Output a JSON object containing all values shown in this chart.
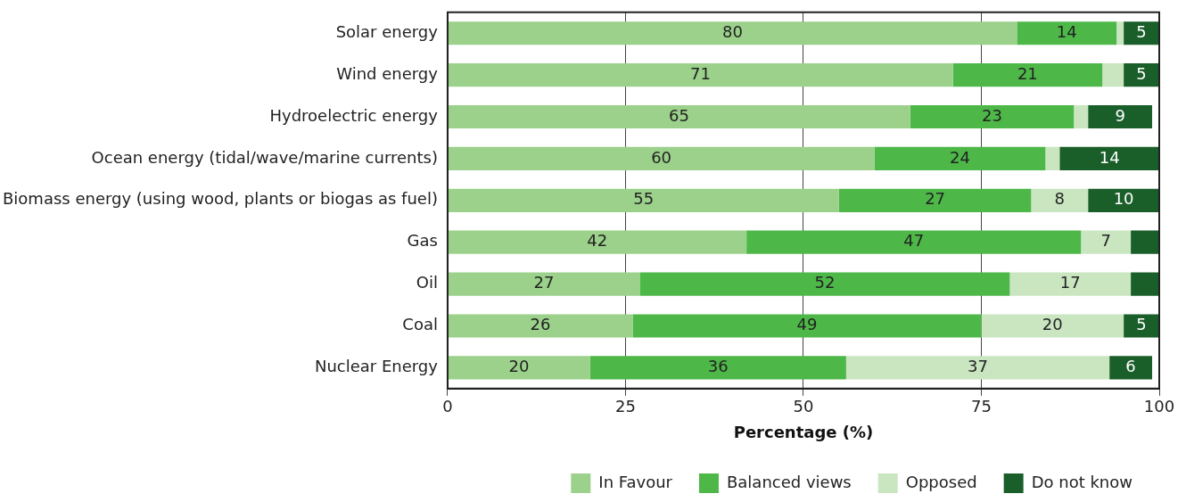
{
  "chart_data": {
    "type": "bar",
    "orientation": "horizontal",
    "stacked": true,
    "xlabel": "Percentage (%)",
    "categories": [
      "Solar energy",
      "Wind energy",
      "Hydroelectric energy",
      "Ocean energy (tidal/wave/marine currents)",
      "Biomass energy (using wood, plants or biogas as fuel)",
      "Gas",
      "Oil",
      "Coal",
      "Nuclear Energy"
    ],
    "series": [
      {
        "name": "In Favour",
        "color": "#9bd18a",
        "values": [
          80,
          71,
          65,
          60,
          55,
          42,
          27,
          26,
          20
        ],
        "value_labels": [
          "80",
          "71",
          "65",
          "60",
          "55",
          "42",
          "27",
          "26",
          "20"
        ]
      },
      {
        "name": "Balanced views",
        "color": "#4db848",
        "values": [
          14,
          21,
          23,
          24,
          27,
          47,
          52,
          49,
          36
        ],
        "value_labels": [
          "14",
          "21",
          "23",
          "24",
          "27",
          "47",
          "52",
          "49",
          "36"
        ]
      },
      {
        "name": "Opposed",
        "color": "#c9e6c0",
        "values": [
          1,
          3,
          2,
          2,
          8,
          7,
          17,
          20,
          37
        ],
        "value_labels": [
          null,
          null,
          null,
          null,
          "8",
          "7",
          "17",
          "20",
          "37"
        ]
      },
      {
        "name": "Do not know",
        "color": "#1a5e2a",
        "values": [
          5,
          5,
          9,
          14,
          10,
          4,
          4,
          5,
          6
        ],
        "value_labels": [
          "5",
          "5",
          "9",
          "14",
          "10",
          null,
          null,
          "5",
          "6"
        ]
      }
    ],
    "xlim": [
      0,
      100
    ],
    "xticks": [
      0,
      25,
      50,
      75,
      100
    ],
    "grid": "x",
    "legend": "bottom"
  }
}
